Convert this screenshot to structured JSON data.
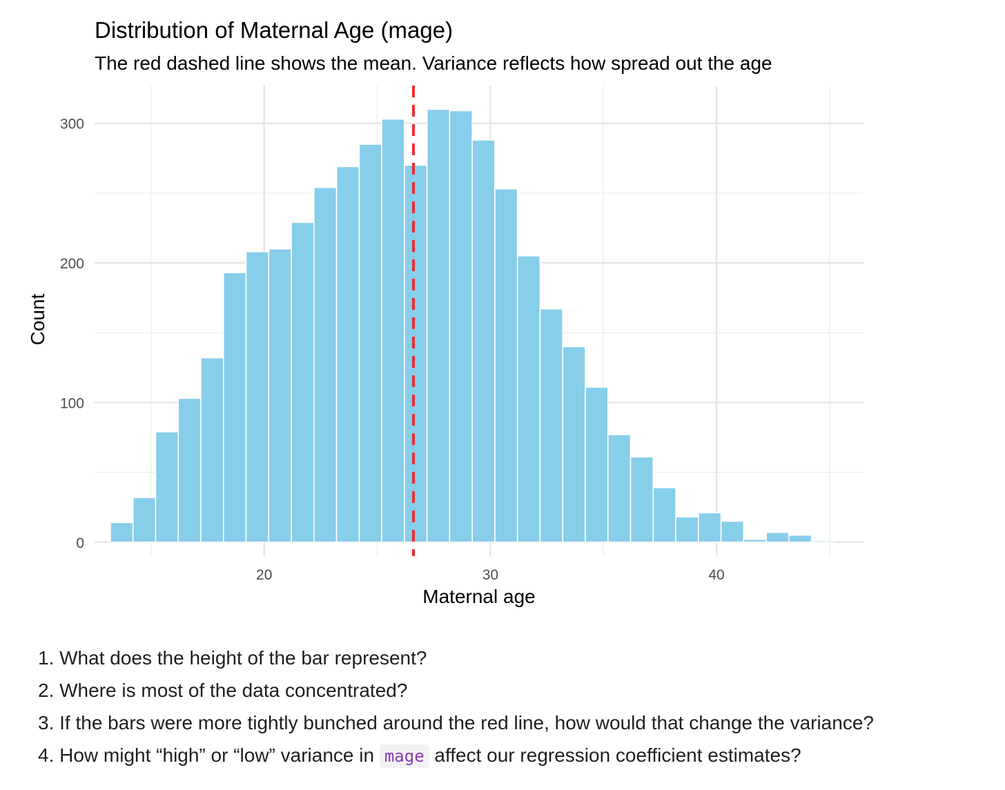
{
  "chart_data": {
    "type": "bar",
    "title": "Distribution of Maternal Age (mage)",
    "subtitle": "The red dashed line shows the mean.  Variance reflects how spread out the age",
    "xlabel": "Maternal age",
    "ylabel": "Count",
    "xlim": [
      12.5,
      46.5
    ],
    "ylim": [
      -10,
      327
    ],
    "x_ticks": [
      20,
      30,
      40
    ],
    "y_ticks": [
      0,
      100,
      200,
      300
    ],
    "x_minor_ticks": [
      15,
      25,
      35,
      45
    ],
    "y_minor_ticks": [
      50,
      150,
      250
    ],
    "grid": true,
    "bar_color": "#87CEEB",
    "mean_line": {
      "x": 26.6,
      "color": "#EE2C2C",
      "style": "dashed"
    },
    "bins": [
      {
        "x": 13.7,
        "count": 14
      },
      {
        "x": 14.7,
        "count": 32
      },
      {
        "x": 15.7,
        "count": 79
      },
      {
        "x": 16.7,
        "count": 103
      },
      {
        "x": 17.7,
        "count": 132
      },
      {
        "x": 18.7,
        "count": 193
      },
      {
        "x": 19.7,
        "count": 208
      },
      {
        "x": 20.7,
        "count": 210
      },
      {
        "x": 21.7,
        "count": 229
      },
      {
        "x": 22.7,
        "count": 254
      },
      {
        "x": 23.7,
        "count": 269
      },
      {
        "x": 24.7,
        "count": 285
      },
      {
        "x": 25.7,
        "count": 303
      },
      {
        "x": 26.7,
        "count": 270
      },
      {
        "x": 27.7,
        "count": 310
      },
      {
        "x": 28.7,
        "count": 309
      },
      {
        "x": 29.7,
        "count": 288
      },
      {
        "x": 30.7,
        "count": 253
      },
      {
        "x": 31.7,
        "count": 205
      },
      {
        "x": 32.7,
        "count": 167
      },
      {
        "x": 33.7,
        "count": 140
      },
      {
        "x": 34.7,
        "count": 111
      },
      {
        "x": 35.7,
        "count": 77
      },
      {
        "x": 36.7,
        "count": 61
      },
      {
        "x": 37.7,
        "count": 39
      },
      {
        "x": 38.7,
        "count": 18
      },
      {
        "x": 39.7,
        "count": 21
      },
      {
        "x": 40.7,
        "count": 15
      },
      {
        "x": 41.7,
        "count": 2
      },
      {
        "x": 42.7,
        "count": 7
      },
      {
        "x": 43.7,
        "count": 5
      },
      {
        "x": 44.7,
        "count": 1
      }
    ]
  },
  "questions": {
    "q1": "1. What does the height of the bar represent?",
    "q2": "2. Where is most of the data concentrated?",
    "q3": "3. If the bars were more tightly bunched around the red line, how would that change the variance?",
    "q4_before": "4. How might “high” or “low” variance in ",
    "q4_code": "mage",
    "q4_after": " affect our regression coefficient estimates?"
  }
}
